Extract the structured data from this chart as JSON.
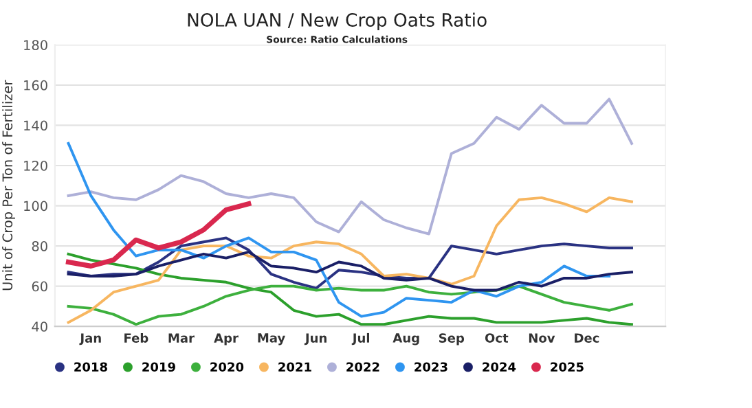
{
  "chart_data": {
    "type": "line",
    "title": "NOLA UAN / New Crop Oats Ratio",
    "subtitle": "Source: Ratio Calculations",
    "ylabel": "Unit of Crop Per Ton of Fertilizer",
    "categories": [
      null,
      "Jan",
      null,
      "Feb",
      null,
      "Mar",
      null,
      "Apr",
      null,
      "May",
      null,
      "Jun",
      null,
      "Jul",
      null,
      "Aug",
      null,
      "Sep",
      null,
      "Oct",
      null,
      "Nov",
      null,
      "Dec",
      null,
      null
    ],
    "ylim": [
      40,
      180
    ],
    "yticks": [
      40,
      60,
      80,
      100,
      120,
      140,
      160,
      180
    ],
    "grid": "y",
    "legend": "bottom",
    "marker": "none",
    "line_style": "solid",
    "series": [
      {
        "name": "2018",
        "color": "#2a3282",
        "values": [
          67,
          65,
          66,
          66,
          72,
          80,
          82,
          84,
          78,
          66,
          62,
          59,
          68,
          67,
          65,
          64,
          64,
          80,
          78,
          76,
          78,
          80,
          81,
          80,
          79,
          79
        ]
      },
      {
        "name": "2019",
        "color": "#2ca02c",
        "values": [
          76,
          73,
          71,
          69,
          66,
          64,
          63,
          62,
          59,
          57,
          48,
          45,
          46,
          41,
          41,
          43,
          45,
          44,
          44,
          42,
          42,
          42,
          43,
          44,
          42,
          41
        ]
      },
      {
        "name": "2020",
        "color": "#3db03d",
        "values": [
          50,
          49,
          46,
          41,
          45,
          46,
          50,
          55,
          58,
          60,
          60,
          58,
          59,
          58,
          58,
          60,
          57,
          56,
          57,
          58,
          60,
          56,
          52,
          50,
          48,
          51
        ]
      },
      {
        "name": "2021",
        "color": "#f7b660",
        "values": [
          42,
          48,
          57,
          60,
          63,
          78,
          80,
          80,
          75,
          74,
          80,
          82,
          81,
          76,
          65,
          66,
          64,
          61,
          65,
          90,
          103,
          104,
          101,
          97,
          104,
          102
        ]
      },
      {
        "name": "2022",
        "color": "#aeb0d8",
        "values": [
          105,
          107,
          104,
          103,
          108,
          115,
          112,
          106,
          104,
          106,
          104,
          92,
          87,
          102,
          93,
          89,
          86,
          126,
          131,
          144,
          138,
          150,
          141,
          141,
          153,
          131
        ]
      },
      {
        "name": "2023",
        "color": "#2f95f0",
        "values": [
          131,
          105,
          88,
          75,
          78,
          78,
          74,
          80,
          84,
          77,
          77,
          73,
          52,
          45,
          47,
          54,
          53,
          52,
          58,
          55,
          60,
          62,
          70,
          65,
          65,
          null
        ]
      },
      {
        "name": "2024",
        "color": "#1a1f66",
        "values": [
          66,
          65,
          65,
          66,
          70,
          73,
          76,
          74,
          77,
          70,
          69,
          67,
          72,
          70,
          64,
          63,
          64,
          60,
          58,
          58,
          62,
          60,
          64,
          64,
          66,
          67
        ]
      },
      {
        "name": "2025",
        "color": "#d9284e",
        "values": [
          72,
          70,
          73,
          83,
          79,
          82,
          88,
          98,
          101,
          null,
          null,
          null,
          null,
          null,
          null,
          null,
          null,
          null,
          null,
          null,
          null,
          null,
          null,
          null,
          null,
          null
        ]
      }
    ]
  }
}
